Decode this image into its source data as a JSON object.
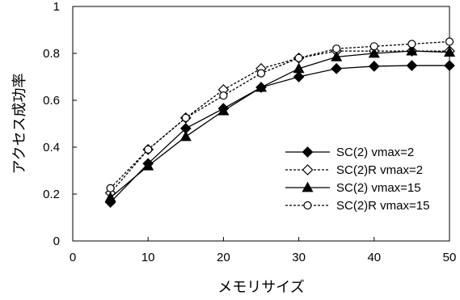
{
  "chart_data": {
    "type": "line",
    "xlabel": "メモリサイズ",
    "ylabel": "アクセス成功率",
    "xlim": [
      0,
      50
    ],
    "ylim": [
      0,
      1
    ],
    "xticks": [
      0,
      10,
      20,
      30,
      40,
      50
    ],
    "yticks": [
      0,
      0.2,
      0.4,
      0.6,
      0.8,
      1
    ],
    "ytick_labels": [
      "0",
      "0.2",
      "0.4",
      "0.6",
      "0.8",
      "1"
    ],
    "grid": false,
    "legend_position": "lower-right",
    "x": [
      5,
      10,
      15,
      20,
      25,
      30,
      35,
      40,
      45,
      50
    ],
    "series": [
      {
        "name": "SC(2) vmax=2",
        "marker": "diamond-filled",
        "line": "solid",
        "color": "#000000",
        "values": [
          0.165,
          0.33,
          0.48,
          0.565,
          0.655,
          0.7,
          0.735,
          0.745,
          0.748,
          0.748
        ]
      },
      {
        "name": "SC(2)R vmax=2",
        "marker": "diamond-open",
        "line": "dashed",
        "color": "#000000",
        "values": [
          0.205,
          0.39,
          0.525,
          0.645,
          0.735,
          0.78,
          0.81,
          0.81,
          0.81,
          0.81
        ]
      },
      {
        "name": "SC(2) vmax=15",
        "marker": "triangle-filled",
        "line": "solid",
        "color": "#000000",
        "values": [
          0.185,
          0.32,
          0.445,
          0.555,
          0.655,
          0.735,
          0.785,
          0.8,
          0.81,
          0.805
        ]
      },
      {
        "name": "SC(2)R vmax=15",
        "marker": "circle-open",
        "line": "dashed",
        "color": "#000000",
        "values": [
          0.225,
          0.39,
          0.525,
          0.62,
          0.715,
          0.78,
          0.82,
          0.83,
          0.84,
          0.85
        ]
      }
    ]
  }
}
